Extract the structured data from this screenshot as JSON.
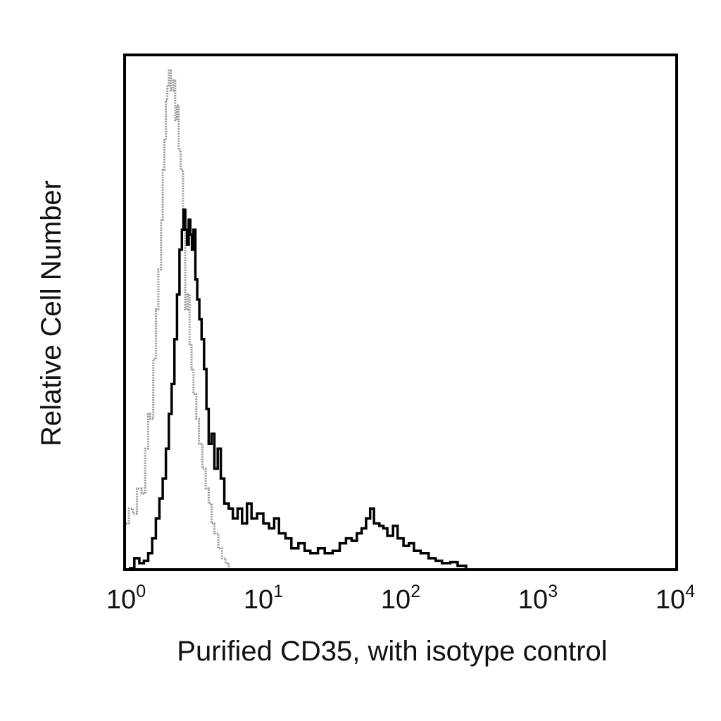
{
  "chart_data": {
    "type": "histogram",
    "title": "",
    "xlabel": "Purified CD35, with isotype control",
    "ylabel": "Relative Cell Number",
    "x_scale": "log",
    "xlim": [
      1,
      10000
    ],
    "ylim": [
      0,
      1
    ],
    "grid": false,
    "legend": "none",
    "x_ticks": [
      {
        "base": "10",
        "exp": "0",
        "value": 1
      },
      {
        "base": "10",
        "exp": "1",
        "value": 10
      },
      {
        "base": "10",
        "exp": "2",
        "value": 100
      },
      {
        "base": "10",
        "exp": "3",
        "value": 1000
      },
      {
        "base": "10",
        "exp": "4",
        "value": 10000
      }
    ],
    "series": [
      {
        "color": "#9a9a9a",
        "style": "dotted",
        "points": [
          [
            1.0,
            0.09
          ],
          [
            1.05,
            0.12
          ],
          [
            1.12,
            0.11
          ],
          [
            1.2,
            0.16
          ],
          [
            1.3,
            0.15
          ],
          [
            1.38,
            0.24
          ],
          [
            1.45,
            0.31
          ],
          [
            1.5,
            0.3
          ],
          [
            1.58,
            0.42
          ],
          [
            1.65,
            0.52
          ],
          [
            1.72,
            0.6
          ],
          [
            1.8,
            0.7
          ],
          [
            1.85,
            0.8
          ],
          [
            1.9,
            0.86
          ],
          [
            1.95,
            0.94
          ],
          [
            2.0,
            0.97
          ],
          [
            2.05,
            1.0
          ],
          [
            2.12,
            0.96
          ],
          [
            2.2,
            0.98
          ],
          [
            2.28,
            0.9
          ],
          [
            2.35,
            0.93
          ],
          [
            2.42,
            0.84
          ],
          [
            2.5,
            0.8
          ],
          [
            2.6,
            0.68
          ],
          [
            2.7,
            0.52
          ],
          [
            2.8,
            0.55
          ],
          [
            2.9,
            0.45
          ],
          [
            3.0,
            0.4
          ],
          [
            3.1,
            0.35
          ],
          [
            3.25,
            0.3
          ],
          [
            3.4,
            0.25
          ],
          [
            3.6,
            0.2
          ],
          [
            3.8,
            0.16
          ],
          [
            4.0,
            0.13
          ],
          [
            4.2,
            0.09
          ],
          [
            4.4,
            0.07
          ],
          [
            4.7,
            0.04
          ],
          [
            5.0,
            0.02
          ],
          [
            5.3,
            0.01
          ],
          [
            5.6,
            0.0
          ]
        ]
      },
      {
        "color": "#000000",
        "style": "solid",
        "points": [
          [
            1.05,
            0.0
          ],
          [
            1.15,
            0.02
          ],
          [
            1.25,
            0.01
          ],
          [
            1.35,
            0.015
          ],
          [
            1.45,
            0.03
          ],
          [
            1.55,
            0.06
          ],
          [
            1.65,
            0.1
          ],
          [
            1.75,
            0.14
          ],
          [
            1.85,
            0.18
          ],
          [
            1.95,
            0.24
          ],
          [
            2.05,
            0.31
          ],
          [
            2.15,
            0.37
          ],
          [
            2.25,
            0.46
          ],
          [
            2.35,
            0.55
          ],
          [
            2.45,
            0.64
          ],
          [
            2.55,
            0.68
          ],
          [
            2.62,
            0.72
          ],
          [
            2.7,
            0.68
          ],
          [
            2.78,
            0.65
          ],
          [
            2.86,
            0.7
          ],
          [
            2.94,
            0.67
          ],
          [
            3.02,
            0.64
          ],
          [
            3.1,
            0.68
          ],
          [
            3.2,
            0.58
          ],
          [
            3.3,
            0.54
          ],
          [
            3.42,
            0.5
          ],
          [
            3.55,
            0.46
          ],
          [
            3.7,
            0.4
          ],
          [
            3.85,
            0.32
          ],
          [
            4.0,
            0.25
          ],
          [
            4.2,
            0.27
          ],
          [
            4.4,
            0.2
          ],
          [
            4.65,
            0.24
          ],
          [
            4.9,
            0.18
          ],
          [
            5.2,
            0.13
          ],
          [
            5.6,
            0.12
          ],
          [
            6.0,
            0.1
          ],
          [
            6.5,
            0.12
          ],
          [
            7.0,
            0.09
          ],
          [
            7.6,
            0.13
          ],
          [
            8.2,
            0.1
          ],
          [
            9.0,
            0.11
          ],
          [
            10.0,
            0.09
          ],
          [
            11.0,
            0.08
          ],
          [
            12.0,
            0.1
          ],
          [
            13.0,
            0.07
          ],
          [
            14.5,
            0.06
          ],
          [
            16.0,
            0.04
          ],
          [
            18.0,
            0.05
          ],
          [
            20.0,
            0.035
          ],
          [
            22.0,
            0.03
          ],
          [
            25.0,
            0.04
          ],
          [
            28.0,
            0.03
          ],
          [
            32.0,
            0.035
          ],
          [
            36.0,
            0.05
          ],
          [
            40.0,
            0.06
          ],
          [
            44.0,
            0.055
          ],
          [
            48.0,
            0.07
          ],
          [
            52.0,
            0.08
          ],
          [
            56.0,
            0.1
          ],
          [
            60.0,
            0.12
          ],
          [
            64.0,
            0.09
          ],
          [
            70.0,
            0.085
          ],
          [
            75.0,
            0.08
          ],
          [
            80.0,
            0.065
          ],
          [
            88.0,
            0.085
          ],
          [
            95.0,
            0.06
          ],
          [
            105.0,
            0.045
          ],
          [
            115.0,
            0.05
          ],
          [
            125.0,
            0.035
          ],
          [
            140.0,
            0.03
          ],
          [
            160.0,
            0.02
          ],
          [
            180.0,
            0.015
          ],
          [
            200.0,
            0.01
          ],
          [
            230.0,
            0.012
          ],
          [
            260.0,
            0.005
          ],
          [
            300.0,
            0.0
          ]
        ]
      }
    ]
  }
}
